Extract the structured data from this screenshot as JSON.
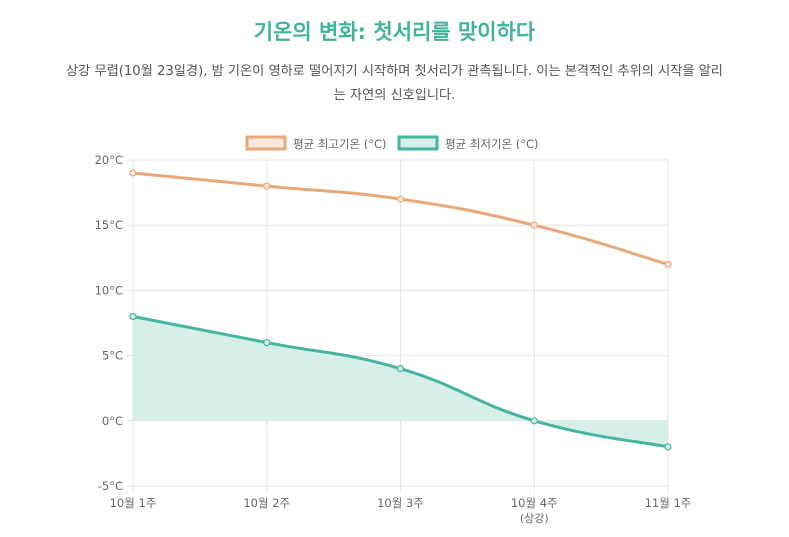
{
  "header": {
    "title": "기온의 변화: 첫서리를 맞이하다",
    "subtitle_line1": "상강 무렵(10월 23일경), 밤 기온이 영하로 떨어지기 시작하며 첫서리가 관측됩니다. 이는 본격적인 추위의 시작을 알리",
    "subtitle_line2": "는 자연의 신호입니다."
  },
  "colors": {
    "max_line": "#e8a97a",
    "max_fill": "#fbe8dc",
    "min_line": "#45b5a0",
    "min_fill": "#d6efe9",
    "grid": "#e6e6e6",
    "axis_text": "#666666"
  },
  "chart_data": {
    "type": "line",
    "categories": [
      "10월 1주",
      "10월 2주",
      "10월 3주",
      "10월 4주",
      "11월 1주"
    ],
    "category_sublabels": [
      "",
      "",
      "",
      "(상강)",
      ""
    ],
    "series": [
      {
        "name": "평균 최고기온 (°C)",
        "values": [
          19,
          18,
          17,
          15,
          12
        ],
        "fill": false
      },
      {
        "name": "평균 최저기온 (°C)",
        "values": [
          8,
          6,
          4,
          0,
          -2
        ],
        "fill": true
      }
    ],
    "yticks": [
      "20°C",
      "15°C",
      "10°C",
      "5°C",
      "0°C",
      "-5°C"
    ],
    "ylim": [
      -5,
      20
    ],
    "legend_position": "top",
    "grid": true
  }
}
